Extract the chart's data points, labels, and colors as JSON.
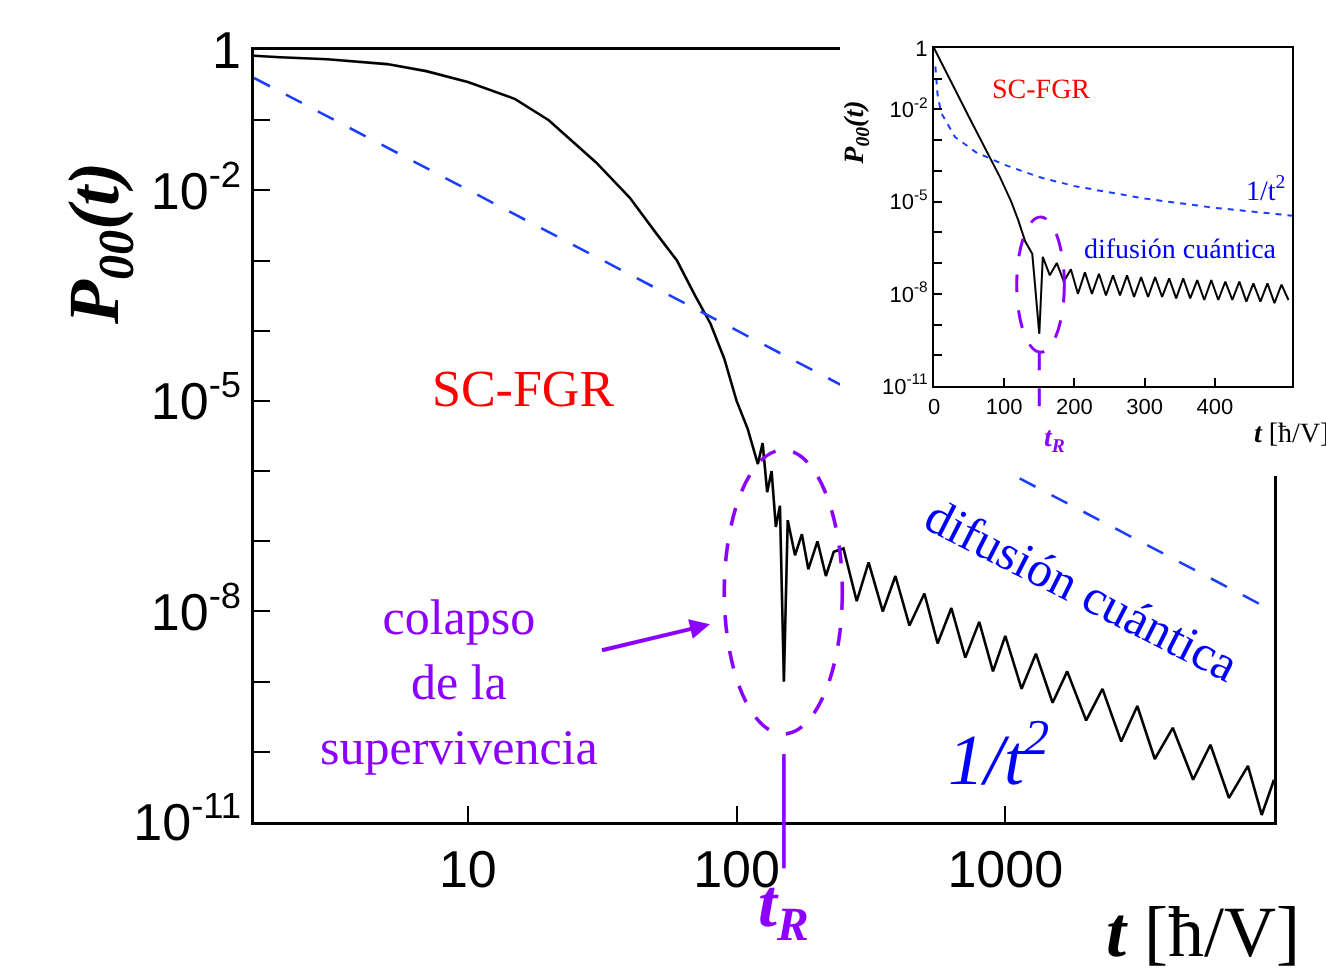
{
  "chart_data": [
    {
      "type": "line",
      "xlabel": "t [ħ/V]",
      "ylabel": "P$_{00}$(t)",
      "log": "xy",
      "xlim": [
        1.6,
        10000
      ],
      "ylim": [
        1e-11,
        1
      ],
      "xticks": [
        10,
        100,
        1000
      ],
      "yticks": [
        1,
        {
          "value": 0.1,
          "label": null
        },
        {
          "value": 0.01,
          "label": "10$^{-2}$"
        },
        {
          "value": 0.001,
          "label": null
        },
        {
          "value": 0.0001,
          "label": null
        },
        {
          "value": 1e-05,
          "label": "10$^{-5}$"
        },
        {
          "value": 1e-06,
          "label": null
        },
        {
          "value": 1e-07,
          "label": null
        },
        {
          "value": 1e-08,
          "label": "10$^{-8}$"
        },
        {
          "value": 1e-09,
          "label": null
        },
        {
          "value": 1e-10,
          "label": null
        },
        {
          "value": 1e-11,
          "label": "10$^{-11}$"
        }
      ],
      "series": [
        {
          "type": "line",
          "color": "#000000",
          "line_style": "solid",
          "x": [
            1.6,
            2,
            3,
            5,
            7,
            10,
            15,
            20,
            30,
            40,
            50,
            60,
            70,
            80,
            90,
            100,
            110,
            120,
            125,
            130,
            135,
            140,
            145,
            150,
            155,
            165,
            175,
            185,
            200,
            215,
            230,
            250,
            280,
            310,
            350,
            390,
            440,
            500,
            560,
            630,
            710,
            800,
            900,
            1000,
            1150,
            1300,
            1500,
            1700,
            2000,
            2300,
            2700,
            3100,
            3600,
            4200,
            5000,
            5800,
            6800,
            8000,
            9000,
            10000
          ],
          "values": [
            0.83,
            0.79,
            0.74,
            0.63,
            0.5,
            0.35,
            0.2,
            0.1,
            0.025,
            0.0079,
            0.0025,
            0.001,
            0.00032,
            0.000126,
            4e-05,
            1e-05,
            4e-06,
            1.26e-06,
            2.5e-06,
            5e-07,
            1e-06,
            1.6e-07,
            3.2e-07,
            1e-09,
            2e-07,
            6.3e-08,
            1.26e-07,
            4e-08,
            1e-07,
            3.2e-08,
            7.1e-08,
            7.9e-08,
            1.4e-08,
            5e-08,
            1e-08,
            3.2e-08,
            6.3e-09,
            1.8e-08,
            3.5e-09,
            1.12e-08,
            2.2e-09,
            7.1e-09,
            1.4e-09,
            4.5e-09,
            7.9e-10,
            2.5e-09,
            5e-10,
            1.4e-09,
            2.8e-10,
            7.9e-10,
            1.4e-10,
            4.5e-10,
            7.9e-11,
            2.2e-10,
            4e-11,
            1.26e-10,
            2.2e-11,
            6.3e-11,
            1.26e-11,
            4e-11
          ]
        },
        {
          "type": "line",
          "color": "#1a3cff",
          "line_style": "dashed",
          "x": [
            1.6,
            10000
          ],
          "values": [
            0.4,
            1e-08
          ]
        }
      ],
      "annotations": [
        "SC-FGR",
        "difusión cuántica",
        "1/t$^{2}$",
        "colapso\nde la\nsupervivencia"
      ],
      "ref_lines": [
        {
          "axis": "x",
          "value": 150,
          "label": "t$_{R}$",
          "color": "#8b00ff",
          "line_style": "solid"
        }
      ]
    },
    {
      "type": "line",
      "xlabel": "t [ħ/V]",
      "ylabel": "P$_{00}$(t)",
      "log": "y",
      "xlim": [
        0,
        510
      ],
      "ylim": [
        1e-11,
        1
      ],
      "xticks": [
        0,
        100,
        200,
        300,
        400
      ],
      "yticks": [
        1,
        {
          "value": 0.1,
          "label": null
        },
        {
          "value": 0.01,
          "label": "10$^{-2}$"
        },
        {
          "value": 0.001,
          "label": null
        },
        {
          "value": 0.0001,
          "label": null
        },
        {
          "value": 1e-05,
          "label": "10$^{-5}$"
        },
        {
          "value": 1e-06,
          "label": null
        },
        {
          "value": 1e-07,
          "label": null
        },
        {
          "value": 1e-08,
          "label": "10$^{-8}$"
        },
        {
          "value": 1e-09,
          "label": null
        },
        {
          "value": 1e-10,
          "label": null
        },
        {
          "value": 1e-11,
          "label": "10$^{-11}$"
        }
      ],
      "series": [
        {
          "type": "line",
          "color": "#000000",
          "line_style": "solid",
          "x": [
            0,
            50,
            94,
            110,
            120,
            130,
            140,
            150,
            155,
            165,
            175,
            185,
            195,
            205,
            215,
            225,
            235,
            245,
            255,
            265,
            275,
            285,
            295,
            305,
            315,
            325,
            335,
            345,
            355,
            365,
            375,
            385,
            395,
            405,
            415,
            425,
            435,
            445,
            455,
            465,
            475,
            485,
            495,
            505
          ],
          "values": [
            1,
            0.0056,
            6.3e-05,
            1e-05,
            2.5e-06,
            5e-07,
            2e-07,
            5e-10,
            1.6e-07,
            4e-08,
            1e-07,
            2.5e-08,
            6.3e-08,
            1e-08,
            5e-08,
            1e-08,
            4.5e-08,
            8.9e-09,
            4e-08,
            8.9e-09,
            4e-08,
            7.9e-09,
            3.5e-08,
            7.9e-09,
            3.5e-08,
            7.9e-09,
            3.2e-08,
            7.1e-09,
            3.2e-08,
            7.1e-09,
            2.8e-08,
            6.3e-09,
            2.8e-08,
            6.3e-09,
            2.5e-08,
            6.3e-09,
            2.5e-08,
            5.6e-09,
            2.2e-08,
            5.6e-09,
            2.2e-08,
            5e-09,
            2e-08,
            6.3e-09
          ]
        },
        {
          "type": "line",
          "color": "#1a3cff",
          "line_style": "dotted",
          "x": [
            2,
            5,
            10,
            30,
            60,
            100,
            150,
            200,
            300,
            400,
            510
          ],
          "values": [
            0.25,
            0.032,
            0.0079,
            0.00126,
            0.0004,
            0.00016,
            6.3e-05,
            3.2e-05,
            1.26e-05,
            6.3e-06,
            3.5e-06
          ]
        }
      ],
      "annotations": [
        "SC-FGR",
        "1/t$^{2}$",
        "difusión cuántica"
      ],
      "ref_lines": [
        {
          "axis": "x",
          "value": 150,
          "label": "t$_{R}$",
          "color": "#8b00ff",
          "line_style": "dashed"
        }
      ]
    }
  ]
}
